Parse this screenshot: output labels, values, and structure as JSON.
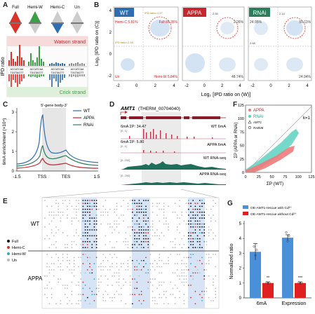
{
  "panel_a": {
    "label": "A",
    "states": [
      "Full",
      "Hemi-W",
      "Hemi-C",
      "Un"
    ],
    "watson_label": "Watson strand",
    "crick_label": "Crick strand",
    "y_label": "IPD ratio",
    "seq_top": "ACCATCAA",
    "seq_bottom": "TGGTAGTT",
    "colors": {
      "full": "#d7342b",
      "hemi_w": "#3aa043",
      "hemi_c": "#2f6db3",
      "un": "#8c8c8c"
    }
  },
  "panel_b": {
    "label": "B",
    "x_label": "Log₂ [IPD ratio on (W)]",
    "y_label": "Log₂ [IPD ratio on (C)]",
    "ticks": [
      "-2",
      "0",
      "2",
      "4"
    ],
    "plots": [
      {
        "name": "WT",
        "color": "#2f6db3",
        "tl": "Hemi-C 5.81%",
        "tr": "Full 88.35%",
        "bl": "Un",
        "br": "Hemi-W 5.84%",
        "th_y": "IPD ratio=2.38",
        "th_x": "IPD ratio=1.97"
      },
      {
        "name": "APPA",
        "color": "#c9252c",
        "tl": "2.55",
        "tr": "2.26%",
        "bl": "",
        "br": "48.74%"
      },
      {
        "name": "RNAi",
        "color": "#2b7e5c",
        "tl": "24.95%",
        "tr": "50.11%",
        "bl": "2.48",
        "br": "24.94%",
        "tm": "2.14"
      }
    ]
  },
  "panel_c": {
    "label": "C",
    "title": "5'-gene body-3'",
    "y_label": "6mA enrichment (×10⁴)",
    "x_ticks": [
      "-1.5",
      "TSS",
      "TES",
      "1.5"
    ],
    "y_ticks": [
      "0",
      "1",
      "2",
      "3"
    ],
    "legend": [
      {
        "name": "WT",
        "color": "#2f6db3"
      },
      {
        "name": "APPA",
        "color": "#c9252c"
      },
      {
        "name": "RNAi",
        "color": "#2b7e5c"
      }
    ]
  },
  "panel_d": {
    "label": "D",
    "gene": "AMT1",
    "gene_id": "(THERM_00704040)",
    "tracks": [
      {
        "left": "6mA ΣP: 34.47",
        "range": "[0, 1]",
        "name": "WT 6mA",
        "color": "#b5324a"
      },
      {
        "left": "6mA ΣP: 5.80",
        "range": "[0, 1]",
        "name": "APPA 6mA",
        "color": "#b5324a"
      },
      {
        "left": "",
        "range": "[0, 250]",
        "name": "WT RNA-seq",
        "color": "#1f6e5a"
      },
      {
        "left": "",
        "range": "[0, 250]",
        "name": "APPA RNA-seq",
        "color": "#1f6e5a"
      }
    ]
  },
  "panel_e": {
    "label": "E",
    "groups": [
      "WT",
      "APPA"
    ],
    "legend": [
      {
        "name": "Full",
        "color": "#111111"
      },
      {
        "name": "Hemi-C",
        "color": "#d7342b"
      },
      {
        "name": "Hemi-W",
        "color": "#35a8c8"
      },
      {
        "name": "Un",
        "color": "#bbbbbb"
      }
    ]
  },
  "panel_f": {
    "label": "F",
    "x_label": "ΣP (WT)",
    "y_label": "ΣP (APPA or RNAi)",
    "ticks": [
      "0",
      "25",
      "50",
      "75",
      "100",
      "125"
    ],
    "k_label": "k=1",
    "legend": [
      {
        "name": "APPA",
        "color": "#ef7a7a"
      },
      {
        "name": "RNAi",
        "color": "#5dd1c0"
      },
      {
        "name": "AMT1",
        "color": "#333"
      },
      {
        "name": "RAB46",
        "color": "#333"
      }
    ]
  },
  "panel_g": {
    "label": "G",
    "y_label": "Normalized ratio",
    "legend": [
      {
        "name": "OE-AMT1-rescue with Cd²⁺",
        "color": "#4a90d9"
      },
      {
        "name": "OE-AMT1-rescue without Cd²⁺",
        "color": "#e02020"
      }
    ],
    "chart_data": {
      "type": "bar",
      "categories": [
        "6mA",
        "Expression"
      ],
      "series": [
        {
          "name": "OE-AMT1-rescue with Cd²⁺",
          "values": [
            3.1,
            4.05
          ]
        },
        {
          "name": "OE-AMT1-rescue without Cd²⁺",
          "values": [
            1.0,
            1.0
          ]
        }
      ],
      "ylim": [
        0,
        5
      ],
      "yticks": [
        "0",
        "1",
        "2",
        "3",
        "4",
        "5"
      ],
      "significance": [
        "**",
        "***"
      ]
    }
  }
}
